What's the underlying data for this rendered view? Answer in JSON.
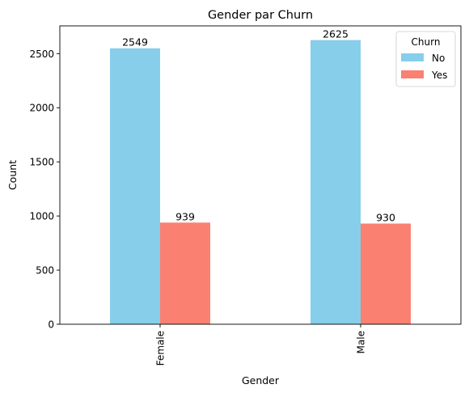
{
  "chart_data": {
    "type": "bar",
    "title": "Gender par Churn",
    "xlabel": "Gender",
    "ylabel": "Count",
    "categories": [
      "Female",
      "Male"
    ],
    "series": [
      {
        "name": "No",
        "values": [
          2549,
          2625
        ],
        "color": "#87ceeb"
      },
      {
        "name": "Yes",
        "values": [
          939,
          930
        ],
        "color": "#fa8072"
      }
    ],
    "ylim": [
      0,
      2756.25
    ],
    "yticks": [
      0,
      500,
      1000,
      1500,
      2000,
      2500
    ],
    "legend": {
      "title": "Churn",
      "placement": "top-right"
    },
    "grid": false
  }
}
